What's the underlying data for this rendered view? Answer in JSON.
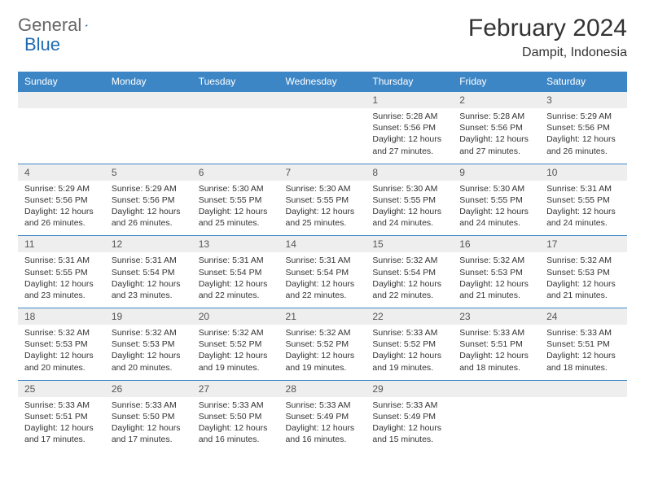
{
  "brand": {
    "text1": "General",
    "text2": "Blue"
  },
  "colors": {
    "header_bg": "#3d86c6",
    "header_text": "#ffffff",
    "daynum_bg": "#eeeeee",
    "daynum_text": "#555555",
    "body_text": "#333333",
    "separator": "#3d86c6",
    "logo_gray": "#666666",
    "logo_accent": "#1f6bb0"
  },
  "title": "February 2024",
  "location": "Dampit, Indonesia",
  "day_headers": [
    "Sunday",
    "Monday",
    "Tuesday",
    "Wednesday",
    "Thursday",
    "Friday",
    "Saturday"
  ],
  "weeks": [
    [
      null,
      null,
      null,
      null,
      {
        "n": "1",
        "sr": "5:28 AM",
        "ss": "5:56 PM",
        "dh": "12",
        "dm": "27"
      },
      {
        "n": "2",
        "sr": "5:28 AM",
        "ss": "5:56 PM",
        "dh": "12",
        "dm": "27"
      },
      {
        "n": "3",
        "sr": "5:29 AM",
        "ss": "5:56 PM",
        "dh": "12",
        "dm": "26"
      }
    ],
    [
      {
        "n": "4",
        "sr": "5:29 AM",
        "ss": "5:56 PM",
        "dh": "12",
        "dm": "26"
      },
      {
        "n": "5",
        "sr": "5:29 AM",
        "ss": "5:56 PM",
        "dh": "12",
        "dm": "26"
      },
      {
        "n": "6",
        "sr": "5:30 AM",
        "ss": "5:55 PM",
        "dh": "12",
        "dm": "25"
      },
      {
        "n": "7",
        "sr": "5:30 AM",
        "ss": "5:55 PM",
        "dh": "12",
        "dm": "25"
      },
      {
        "n": "8",
        "sr": "5:30 AM",
        "ss": "5:55 PM",
        "dh": "12",
        "dm": "24"
      },
      {
        "n": "9",
        "sr": "5:30 AM",
        "ss": "5:55 PM",
        "dh": "12",
        "dm": "24"
      },
      {
        "n": "10",
        "sr": "5:31 AM",
        "ss": "5:55 PM",
        "dh": "12",
        "dm": "24"
      }
    ],
    [
      {
        "n": "11",
        "sr": "5:31 AM",
        "ss": "5:55 PM",
        "dh": "12",
        "dm": "23"
      },
      {
        "n": "12",
        "sr": "5:31 AM",
        "ss": "5:54 PM",
        "dh": "12",
        "dm": "23"
      },
      {
        "n": "13",
        "sr": "5:31 AM",
        "ss": "5:54 PM",
        "dh": "12",
        "dm": "22"
      },
      {
        "n": "14",
        "sr": "5:31 AM",
        "ss": "5:54 PM",
        "dh": "12",
        "dm": "22"
      },
      {
        "n": "15",
        "sr": "5:32 AM",
        "ss": "5:54 PM",
        "dh": "12",
        "dm": "22"
      },
      {
        "n": "16",
        "sr": "5:32 AM",
        "ss": "5:53 PM",
        "dh": "12",
        "dm": "21"
      },
      {
        "n": "17",
        "sr": "5:32 AM",
        "ss": "5:53 PM",
        "dh": "12",
        "dm": "21"
      }
    ],
    [
      {
        "n": "18",
        "sr": "5:32 AM",
        "ss": "5:53 PM",
        "dh": "12",
        "dm": "20"
      },
      {
        "n": "19",
        "sr": "5:32 AM",
        "ss": "5:53 PM",
        "dh": "12",
        "dm": "20"
      },
      {
        "n": "20",
        "sr": "5:32 AM",
        "ss": "5:52 PM",
        "dh": "12",
        "dm": "19"
      },
      {
        "n": "21",
        "sr": "5:32 AM",
        "ss": "5:52 PM",
        "dh": "12",
        "dm": "19"
      },
      {
        "n": "22",
        "sr": "5:33 AM",
        "ss": "5:52 PM",
        "dh": "12",
        "dm": "19"
      },
      {
        "n": "23",
        "sr": "5:33 AM",
        "ss": "5:51 PM",
        "dh": "12",
        "dm": "18"
      },
      {
        "n": "24",
        "sr": "5:33 AM",
        "ss": "5:51 PM",
        "dh": "12",
        "dm": "18"
      }
    ],
    [
      {
        "n": "25",
        "sr": "5:33 AM",
        "ss": "5:51 PM",
        "dh": "12",
        "dm": "17"
      },
      {
        "n": "26",
        "sr": "5:33 AM",
        "ss": "5:50 PM",
        "dh": "12",
        "dm": "17"
      },
      {
        "n": "27",
        "sr": "5:33 AM",
        "ss": "5:50 PM",
        "dh": "12",
        "dm": "16"
      },
      {
        "n": "28",
        "sr": "5:33 AM",
        "ss": "5:49 PM",
        "dh": "12",
        "dm": "16"
      },
      {
        "n": "29",
        "sr": "5:33 AM",
        "ss": "5:49 PM",
        "dh": "12",
        "dm": "15"
      },
      null,
      null
    ]
  ],
  "labels": {
    "sunrise": "Sunrise:",
    "sunset": "Sunset:",
    "daylight": "Daylight:",
    "hours": "hours",
    "and": "and",
    "minutes": "minutes."
  }
}
